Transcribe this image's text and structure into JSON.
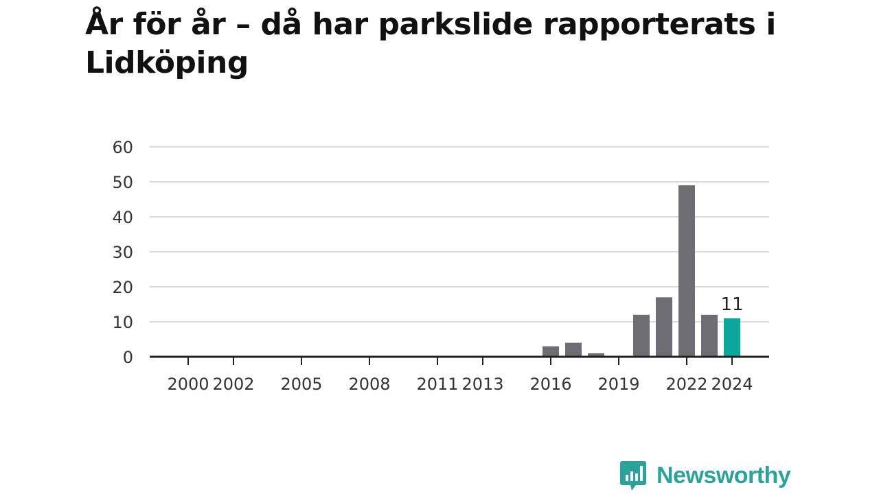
{
  "title": "År för år – då har parkslide rapporterats i Lidköping",
  "brand": {
    "name": "Newsworthy"
  },
  "colors": {
    "bar": "#6e6d73",
    "highlight": "#0da69b",
    "grid": "#d9d9d9",
    "axis": "#222222",
    "brand": "#2aa39a"
  },
  "chart_data": {
    "type": "bar",
    "x": [
      2000,
      2001,
      2002,
      2003,
      2004,
      2005,
      2006,
      2007,
      2008,
      2009,
      2010,
      2011,
      2012,
      2013,
      2014,
      2015,
      2016,
      2017,
      2018,
      2019,
      2020,
      2021,
      2022,
      2023,
      2024
    ],
    "values": [
      0,
      0,
      0,
      0,
      0,
      0,
      0,
      0,
      0,
      0,
      0,
      0,
      0,
      0,
      0,
      0,
      3,
      4,
      1,
      0,
      12,
      17,
      49,
      12,
      11
    ],
    "x_tick_labels": [
      "2000",
      "2002",
      "2005",
      "2008",
      "2011",
      "2013",
      "2016",
      "2019",
      "2022",
      "2024"
    ],
    "y_ticks": [
      0,
      10,
      20,
      30,
      40,
      50,
      60
    ],
    "ylim": [
      0,
      60
    ],
    "highlight_year": 2024,
    "highlight_label": "11",
    "grid": true,
    "xlabel": "",
    "ylabel": ""
  }
}
